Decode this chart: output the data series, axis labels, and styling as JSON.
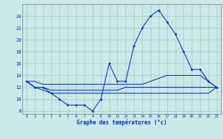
{
  "background_color": "#cce8e8",
  "grid_color": "#aacccc",
  "line_color": "#0033cc",
  "xlabel": "Graphe des températures (°c)",
  "hours": [
    0,
    1,
    2,
    3,
    4,
    5,
    6,
    7,
    8,
    9,
    10,
    11,
    12,
    13,
    14,
    15,
    16,
    17,
    18,
    19,
    20,
    21,
    22,
    23
  ],
  "temp_current": [
    13,
    12,
    12,
    11,
    10,
    9,
    9,
    9,
    8,
    10,
    16,
    13,
    13,
    19,
    22,
    24,
    25,
    23,
    21,
    18,
    15,
    15,
    13,
    12
  ],
  "temp_max": [
    13,
    13,
    12.5,
    12.5,
    12.5,
    12.5,
    12.5,
    12.5,
    12.5,
    12.5,
    12.5,
    12.5,
    12.5,
    12.5,
    12.5,
    13,
    13.5,
    14,
    14,
    14,
    14,
    14,
    13,
    12
  ],
  "temp_min": [
    13,
    12,
    11.5,
    11,
    11,
    11,
    11,
    11,
    11,
    11,
    11,
    11,
    11,
    11,
    11,
    11,
    11,
    11,
    11,
    11,
    11,
    11,
    11,
    12
  ],
  "temp_avg": [
    13,
    12,
    12,
    11.5,
    11.5,
    11.5,
    11.5,
    11.5,
    11.5,
    11.5,
    11.5,
    11.5,
    12,
    12,
    12,
    12,
    12,
    12,
    12,
    12,
    12,
    12,
    12,
    12
  ],
  "ylim": [
    7.5,
    26
  ],
  "yticks": [
    8,
    10,
    12,
    14,
    16,
    18,
    20,
    22,
    24
  ],
  "xlim": [
    -0.5,
    23.5
  ],
  "figwidth": 3.2,
  "figheight": 2.0,
  "dpi": 100
}
